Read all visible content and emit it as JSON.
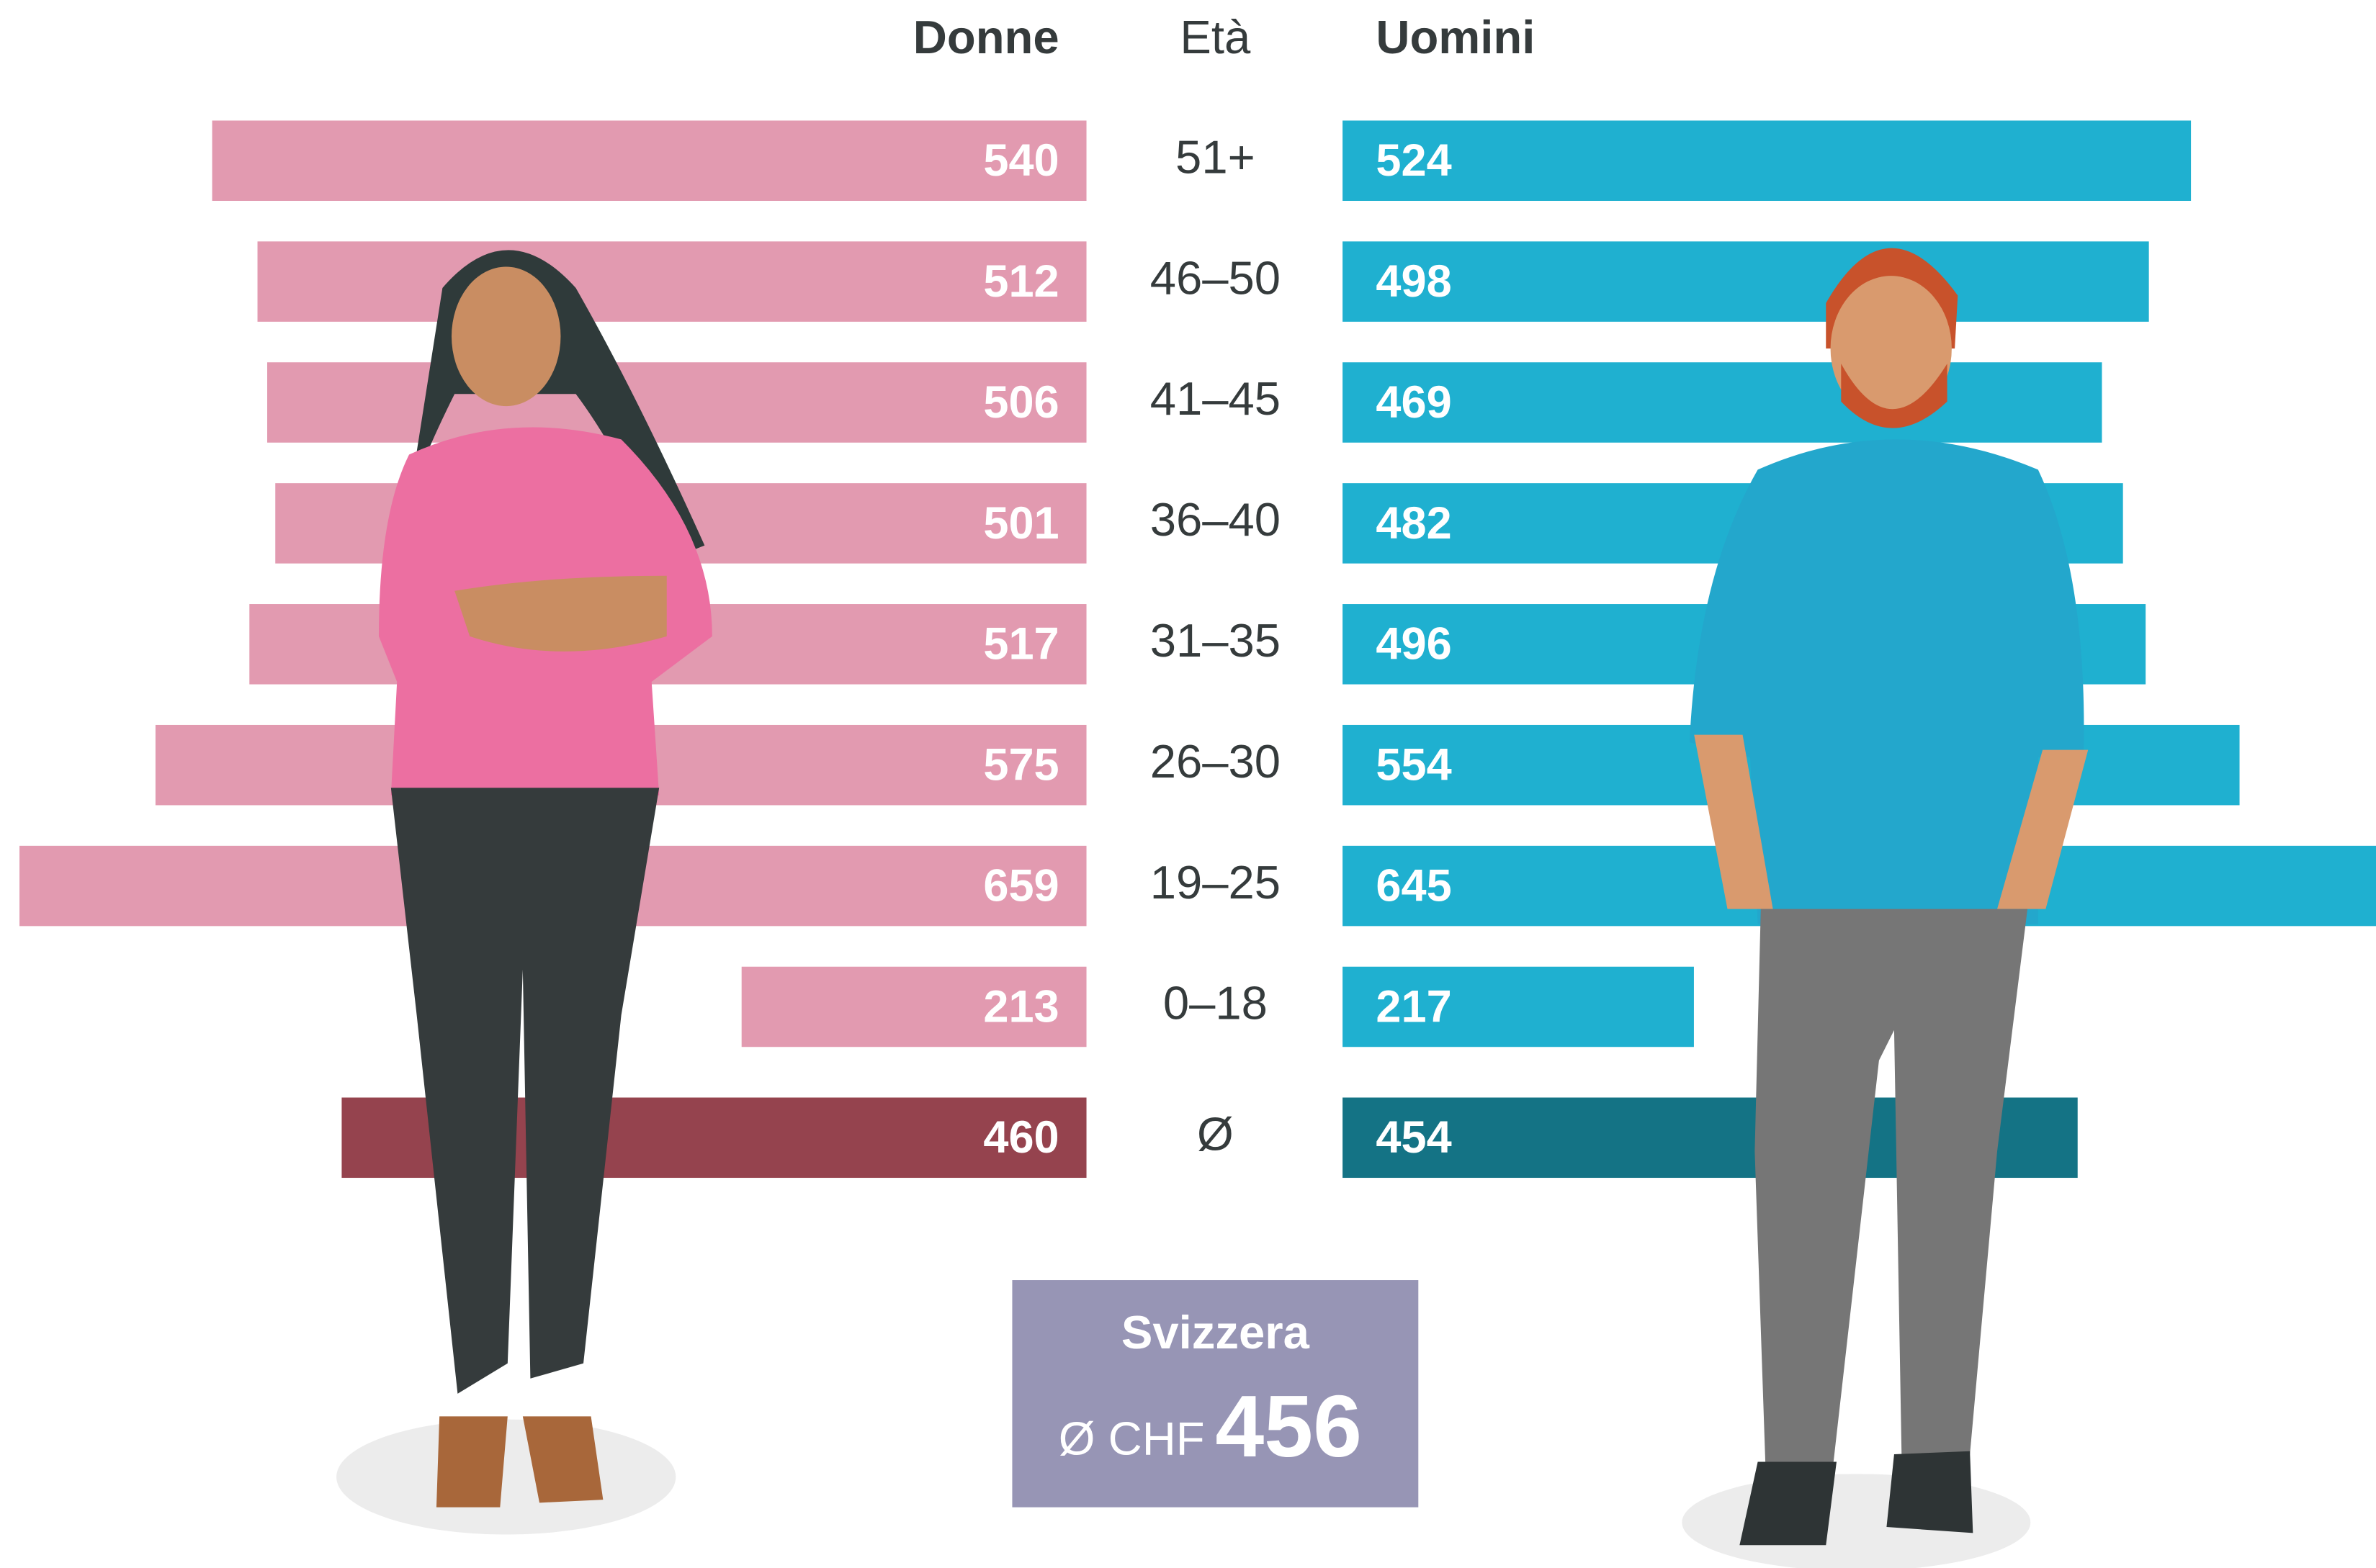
{
  "chart_data": {
    "type": "butterfly",
    "category_label": "Età",
    "categories": [
      "51+",
      "46–50",
      "41–45",
      "36–40",
      "31–35",
      "26–30",
      "19–25",
      "0–18",
      "Ø"
    ],
    "series": [
      {
        "name": "Donne",
        "values": [
          540,
          512,
          506,
          501,
          517,
          575,
          659,
          213,
          460
        ],
        "colors": [
          "#e29ab0",
          "#e29ab0",
          "#e29ab0",
          "#e29ab0",
          "#e29ab0",
          "#e29ab0",
          "#e29ab0",
          "#e29ab0",
          "#95434e"
        ]
      },
      {
        "name": "Uomini",
        "values": [
          524,
          498,
          469,
          482,
          496,
          554,
          645,
          217,
          454
        ],
        "colors": [
          "#1fb0d0",
          "#1fb0d0",
          "#1fb0d0",
          "#1fb0d0",
          "#1fb0d0",
          "#1fb0d0",
          "#1fb0d0",
          "#1fb0d0",
          "#147385"
        ]
      }
    ],
    "summary": {
      "title": "Svizzera",
      "prefix": "Ø CHF",
      "value": 456,
      "color": "#9795b5"
    }
  }
}
